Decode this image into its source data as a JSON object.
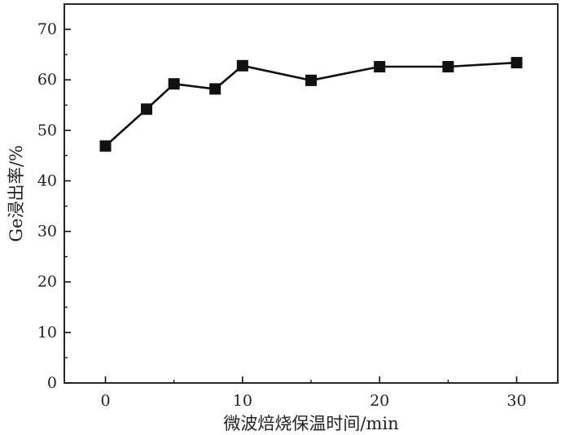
{
  "chart_data": {
    "type": "line",
    "xlabel": "微波焙烧保温时间/min",
    "ylabel": "Ge浸出率/%",
    "xlim": [
      -3,
      33
    ],
    "ylim": [
      0,
      75
    ],
    "xticks": [
      0,
      10,
      20,
      30
    ],
    "yticks": [
      0,
      10,
      20,
      30,
      40,
      50,
      60,
      70
    ],
    "grid": false,
    "series": [
      {
        "marker": "square",
        "color": "#111111",
        "x": [
          0,
          3,
          5,
          8,
          10,
          15,
          20,
          25,
          30
        ],
        "y": [
          46.9,
          54.2,
          59.2,
          58.2,
          62.8,
          59.9,
          62.6,
          62.6,
          63.4
        ]
      }
    ]
  }
}
